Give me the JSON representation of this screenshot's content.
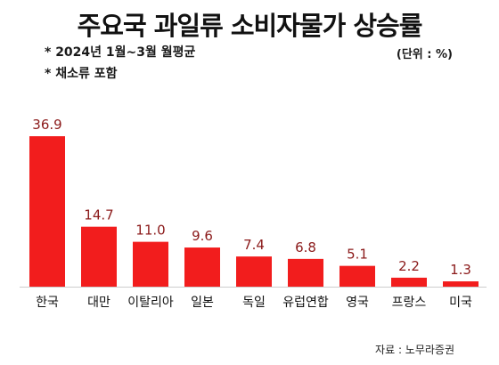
{
  "title": "주요국 과일류 소비자물가 상승률",
  "notes": [
    "* 2024년 1월~3월 월평균",
    "* 채소류 포함"
  ],
  "unit": "(단위 : %)",
  "source": "자료 : 노무라증권",
  "colors": {
    "bar": "#f21d1d",
    "value_label": "#8b1a1a",
    "axis": "#cccccc"
  },
  "chart_data": {
    "type": "bar",
    "categories": [
      "한국",
      "대만",
      "이탈리아",
      "일본",
      "독일",
      "유럽연합",
      "영국",
      "프랑스",
      "미국"
    ],
    "values": [
      36.9,
      14.7,
      11.0,
      9.6,
      7.4,
      6.8,
      5.1,
      2.2,
      1.3
    ],
    "value_labels": [
      "36.9",
      "14.7",
      "11.0",
      "9.6",
      "7.4",
      "6.8",
      "5.1",
      "2.2",
      "1.3"
    ],
    "ylim": [
      0,
      36.9
    ],
    "grid": false,
    "legend": "none"
  }
}
